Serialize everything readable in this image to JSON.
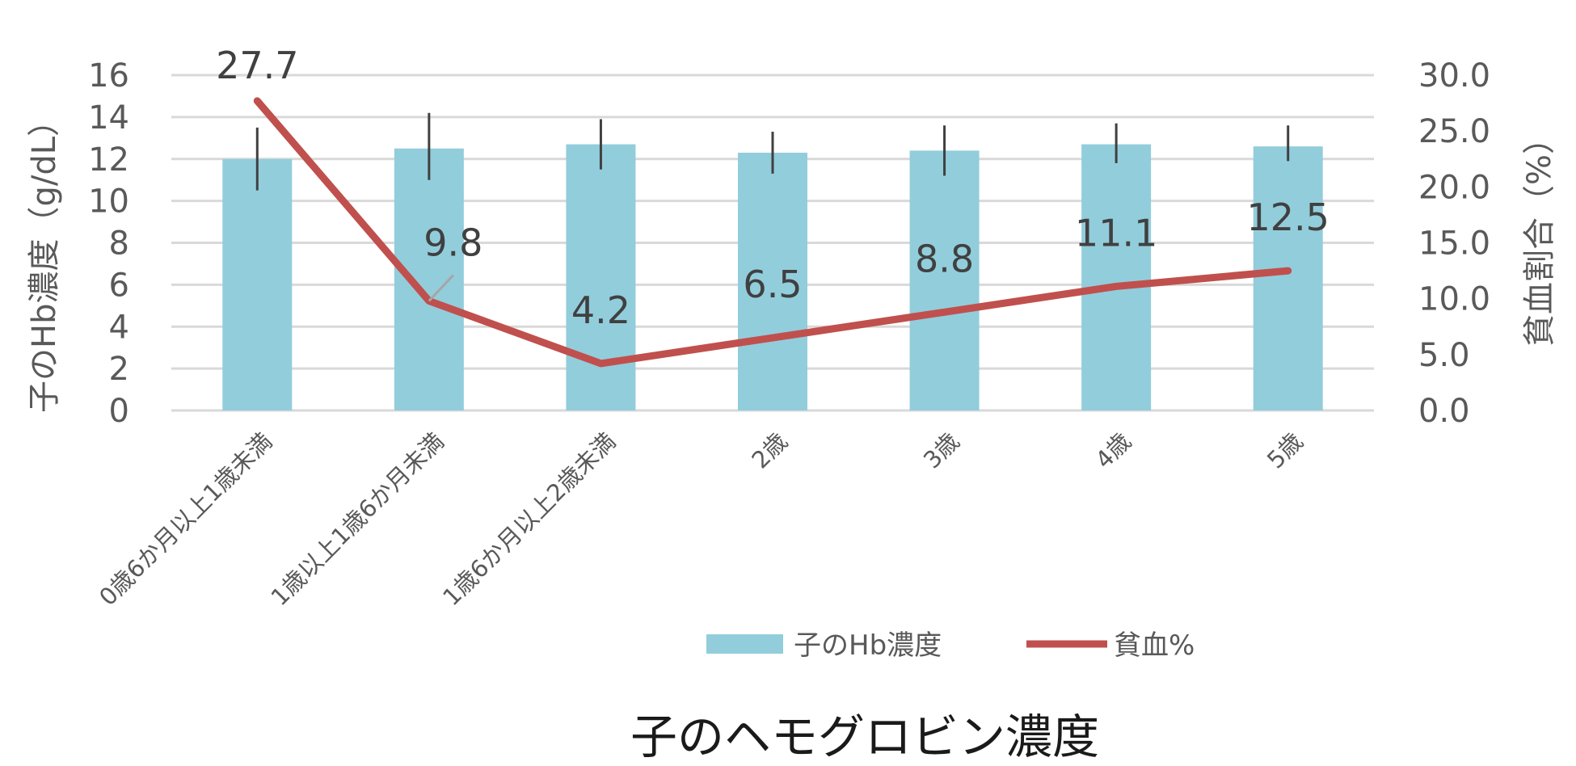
{
  "chart_data": {
    "type": "bar",
    "title": "子のヘモグロビン濃度",
    "categories": [
      "0歳6か月以上1歳未満",
      "1歳以上1歳6か月未満",
      "1歳6か月以上2歳未満",
      "2歳",
      "3歳",
      "4歳",
      "5歳"
    ],
    "y_left": {
      "label": "子のHb濃度（g/dL）",
      "ylim": [
        0,
        16
      ],
      "ticks": [
        "0",
        "2",
        "4",
        "6",
        "8",
        "10",
        "12",
        "14",
        "16"
      ]
    },
    "y_right": {
      "label": "貧血割合（%）",
      "ylim": [
        0,
        30
      ],
      "ticks": [
        "0.0",
        "5.0",
        "10.0",
        "15.0",
        "20.0",
        "25.0",
        "30.0"
      ]
    },
    "grid": true,
    "legend_position": "bottom",
    "series": [
      {
        "name": "子のHb濃度",
        "type": "bar",
        "axis": "left",
        "color": "#92CDDC",
        "values": [
          12.0,
          12.5,
          12.7,
          12.3,
          12.4,
          12.7,
          12.6
        ],
        "error_low": [
          10.5,
          11.0,
          11.5,
          11.3,
          11.2,
          11.8,
          11.9
        ],
        "error_high": [
          13.5,
          14.2,
          13.9,
          13.3,
          13.6,
          13.7,
          13.6
        ]
      },
      {
        "name": "貧血%",
        "type": "line",
        "axis": "right",
        "color": "#C0504D",
        "values": [
          27.7,
          9.8,
          4.2,
          6.5,
          8.8,
          11.1,
          12.5
        ],
        "labels": [
          "27.7",
          "9.8",
          "4.2",
          "6.5",
          "8.8",
          "11.1",
          "12.5"
        ]
      }
    ]
  }
}
